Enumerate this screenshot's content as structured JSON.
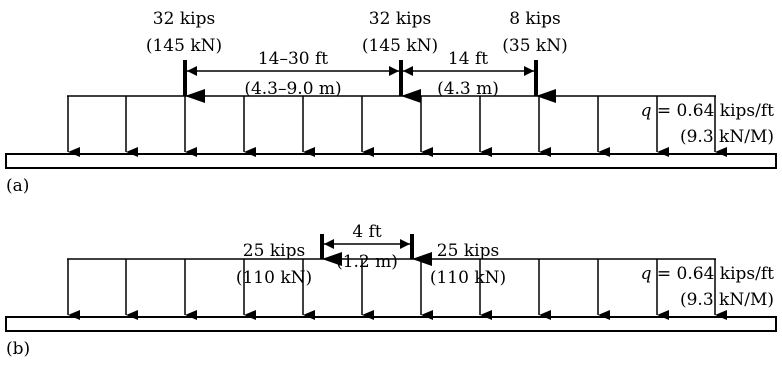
{
  "panel_a": {
    "caption": "(a)",
    "loads": [
      {
        "kips": "32 kips",
        "kn": "(145 kN)"
      },
      {
        "kips": "32 kips",
        "kn": "(145 kN)"
      },
      {
        "kips": "8 kips",
        "kn": "(35 kN)"
      }
    ],
    "spacings": [
      {
        "ft": "14–30 ft",
        "m": "(4.3–9.0 m)"
      },
      {
        "ft": "14 ft",
        "m": "(4.3 m)"
      }
    ],
    "distributed": {
      "symbol": "q",
      "value": " = 0.64 kips/ft",
      "metric": "(9.3 kN/M)"
    }
  },
  "panel_b": {
    "caption": "(b)",
    "loads": [
      {
        "kips": "25 kips",
        "kn": "(110 kN)"
      },
      {
        "kips": "25 kips",
        "kn": "(110 kN)"
      }
    ],
    "spacings": [
      {
        "ft": "4 ft",
        "m": "(1.2 m)"
      }
    ],
    "distributed": {
      "symbol": "q",
      "value": " = 0.64 kips/ft",
      "metric": "(9.3 kN/M)"
    }
  }
}
